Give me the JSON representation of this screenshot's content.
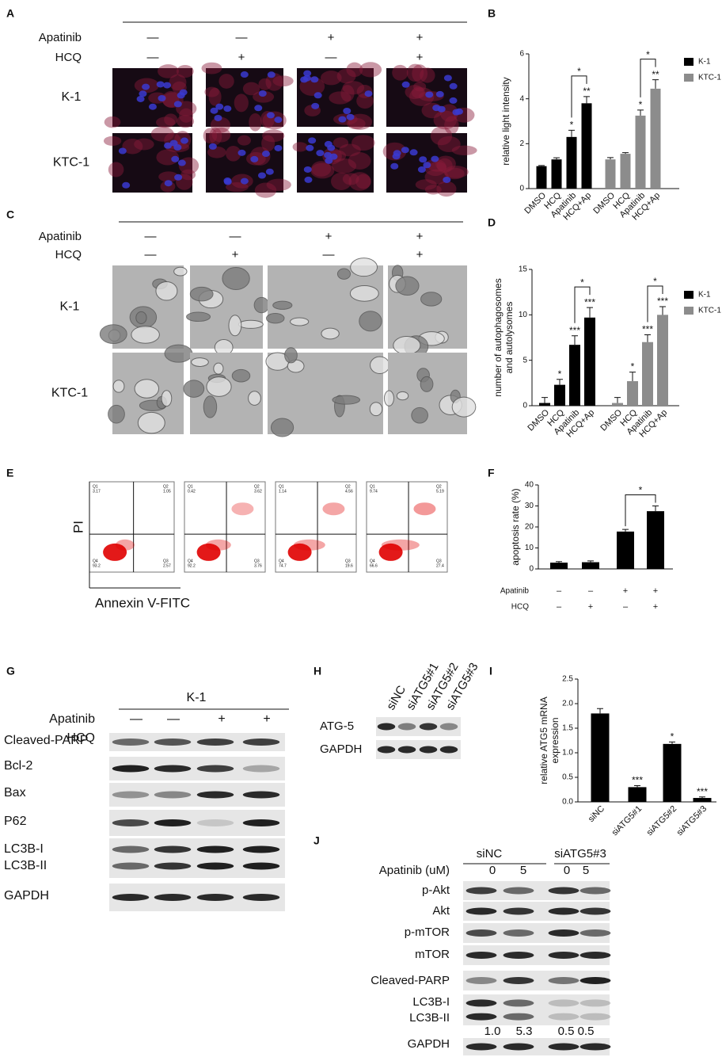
{
  "panel_labels": [
    "A",
    "B",
    "C",
    "D",
    "E",
    "F",
    "G",
    "H",
    "I",
    "J"
  ],
  "panel_a": {
    "treatments": [
      {
        "name": "Apatinib",
        "signs": [
          "—",
          "—",
          "+",
          "+"
        ]
      },
      {
        "name": "HCQ",
        "signs": [
          "—",
          "+",
          "—",
          "+"
        ]
      }
    ],
    "cell_lines": [
      "K-1",
      "KTC-1"
    ]
  },
  "panel_c": {
    "treatments": [
      {
        "name": "Apatinib",
        "signs": [
          "—",
          "—",
          "+",
          "+"
        ]
      },
      {
        "name": "HCQ",
        "signs": [
          "—",
          "+",
          "—",
          "+"
        ]
      }
    ],
    "cell_lines": [
      "K-1",
      "KTC-1"
    ]
  },
  "panel_e": {
    "y_label": "PI",
    "x_label": "Annexin V-FITC",
    "plots": [
      {
        "Q1": "3.17",
        "Q2": "1.05",
        "Q3": "2.57",
        "Q4": "93.2"
      },
      {
        "Q1": "0.42",
        "Q2": "3.62",
        "Q3": "3.76",
        "Q4": "92.2"
      },
      {
        "Q1": "1.14",
        "Q2": "4.56",
        "Q3": "19.6",
        "Q4": "74.7"
      },
      {
        "Q1": "9.74",
        "Q2": "5.19",
        "Q3": "27.4",
        "Q4": "66.6"
      }
    ]
  },
  "panel_g": {
    "cell_line": "K-1",
    "treatments": [
      {
        "name": "Apatinib",
        "signs": [
          "—",
          "—",
          "+",
          "+"
        ]
      },
      {
        "name": "HCQ",
        "signs": [
          "—",
          "+",
          "—",
          "+"
        ]
      }
    ],
    "proteins": [
      "Cleaved-PARP",
      "Bcl-2",
      "Bax",
      "P62",
      "LC3B-I",
      "LC3B-II",
      "GAPDH"
    ]
  },
  "panel_h": {
    "samples": [
      "siNC",
      "siATG5#1",
      "siATG5#2",
      "siATG5#3"
    ],
    "proteins": [
      "ATG-5",
      "GAPDH"
    ]
  },
  "panel_j": {
    "groups": [
      "siNC",
      "siATG5#3"
    ],
    "treatment": "Apatinib (uM)",
    "doses": [
      "0",
      "5",
      "0",
      "5"
    ],
    "proteins": [
      "p-Akt",
      "Akt",
      "p-mTOR",
      "mTOR",
      "Cleaved-PARP",
      "LC3B-I",
      "LC3B-II",
      "GAPDH"
    ],
    "quantification": [
      "1.0",
      "5.3",
      "0.5",
      "0.5"
    ]
  },
  "chart_data": [
    {
      "type": "bar",
      "y_label": [
        "relative light intensity"
      ],
      "categories": [
        "DMSO",
        "HCQ",
        "Apatinib",
        "HCQ+Ap"
      ],
      "ylim": [
        0,
        6
      ],
      "yticks": [
        0,
        2,
        4,
        6
      ],
      "legend": "right",
      "series": [
        {
          "name": "K-1",
          "color": "#000000",
          "values": [
            1.0,
            1.3,
            2.3,
            3.8
          ],
          "errors": [
            0.03,
            0.07,
            0.3,
            0.3
          ],
          "significance": [
            null,
            null,
            "*",
            "**"
          ],
          "brackets": [
            {
              "from": 2,
              "to": 3,
              "text": "*"
            }
          ]
        },
        {
          "name": "KTC-1",
          "color": "#8c8c8c",
          "values": [
            1.3,
            1.55,
            3.25,
            4.45
          ],
          "errors": [
            0.08,
            0.05,
            0.25,
            0.4
          ],
          "significance": [
            null,
            null,
            "*",
            "**"
          ],
          "brackets": [
            {
              "from": 2,
              "to": 3,
              "text": "*"
            }
          ]
        }
      ]
    },
    {
      "type": "bar",
      "y_label": [
        "number of autophagosomes",
        "and autolysomes"
      ],
      "categories": [
        "DMSO",
        "HCQ",
        "Apatinib",
        "HCQ+Ap"
      ],
      "ylim": [
        0,
        15
      ],
      "yticks": [
        0,
        5,
        10,
        15
      ],
      "legend": "right",
      "series": [
        {
          "name": "K-1",
          "color": "#000000",
          "values": [
            0.3,
            2.3,
            6.7,
            9.7
          ],
          "errors": [
            0.6,
            0.6,
            1.0,
            1.1
          ],
          "significance": [
            null,
            "*",
            "***",
            "***"
          ],
          "brackets": [
            {
              "from": 2,
              "to": 3,
              "text": "*"
            }
          ]
        },
        {
          "name": "KTC-1",
          "color": "#8c8c8c",
          "values": [
            0.3,
            2.7,
            7.0,
            10.0
          ],
          "errors": [
            0.6,
            1.0,
            0.8,
            0.9
          ],
          "significance": [
            null,
            "*",
            "***",
            "***"
          ],
          "brackets": [
            {
              "from": 2,
              "to": 3,
              "text": "*"
            }
          ]
        }
      ]
    },
    {
      "type": "bar",
      "y_label": [
        "apoptosis rate (%)"
      ],
      "categories": [
        null,
        null,
        null,
        null
      ],
      "ylim": [
        0,
        40
      ],
      "yticks": [
        0,
        10,
        20,
        30,
        40
      ],
      "color": "#000000",
      "values": [
        3.0,
        3.2,
        17.8,
        27.5
      ],
      "errors": [
        0.5,
        0.6,
        1.0,
        2.5
      ],
      "brackets": [
        {
          "from": 2,
          "to": 3,
          "text": "*"
        }
      ],
      "conditions": [
        {
          "name": "Apatinib",
          "signs": [
            "–",
            "–",
            "+",
            "+"
          ]
        },
        {
          "name": "HCQ",
          "signs": [
            "–",
            "+",
            "–",
            "+"
          ]
        }
      ]
    },
    {
      "type": "bar",
      "y_label": [
        "relative ATG5 mRNA",
        "expression"
      ],
      "categories": [
        "siNC",
        "siATG5#1",
        "siATG5#2",
        "siATG5#3"
      ],
      "ylim": [
        0,
        2.5
      ],
      "yticks": [
        {
          "value": 0,
          "label": "0.0"
        },
        0.5,
        {
          "value": 1,
          "label": "1.0"
        },
        1.5,
        {
          "value": 2,
          "label": "2.0"
        },
        2.5
      ],
      "color": "#000000",
      "values": [
        1.8,
        0.3,
        1.18,
        0.08
      ],
      "errors": [
        0.1,
        0.03,
        0.04,
        0.02
      ],
      "significance": [
        null,
        "***",
        "*",
        "***"
      ]
    }
  ]
}
